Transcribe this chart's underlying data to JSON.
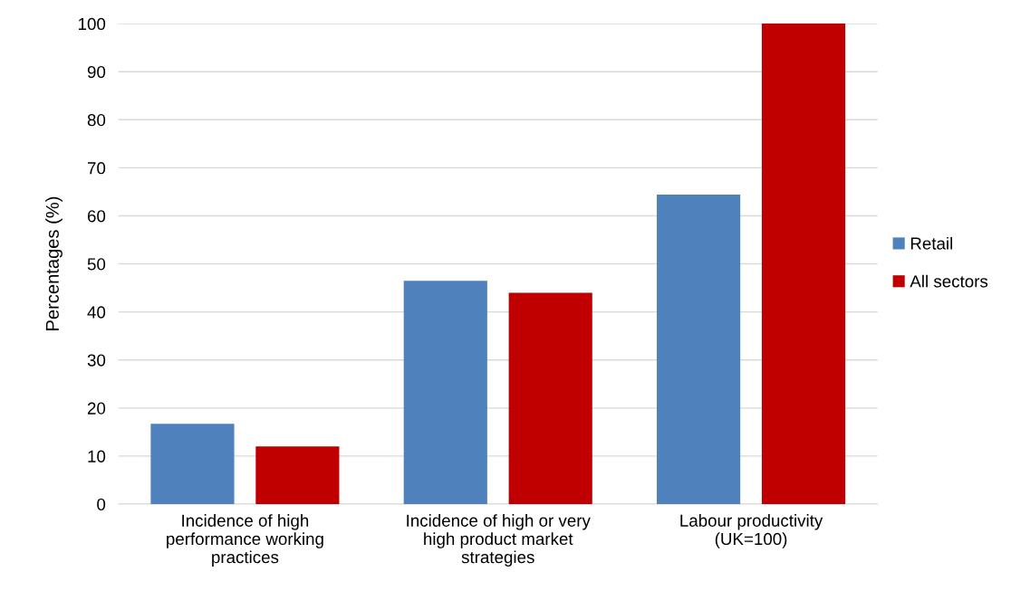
{
  "chart_data": {
    "type": "bar",
    "ylabel": "Percentages (%)",
    "categories": [
      "Incidence of high performance working practices",
      "Incidence of high or very high product market strategies",
      "Labour productivity (UK=100)"
    ],
    "series": [
      {
        "name": "Retail",
        "color": "#4f81bd",
        "values": [
          16.7,
          46.5,
          64.4
        ]
      },
      {
        "name": "All sectors",
        "color": "#c00000",
        "values": [
          12,
          44,
          100
        ]
      }
    ],
    "ylim": [
      0,
      100
    ],
    "yticks": [
      0,
      10,
      20,
      30,
      40,
      50,
      60,
      70,
      80,
      90,
      100
    ],
    "grid": "y",
    "legend": "right"
  }
}
